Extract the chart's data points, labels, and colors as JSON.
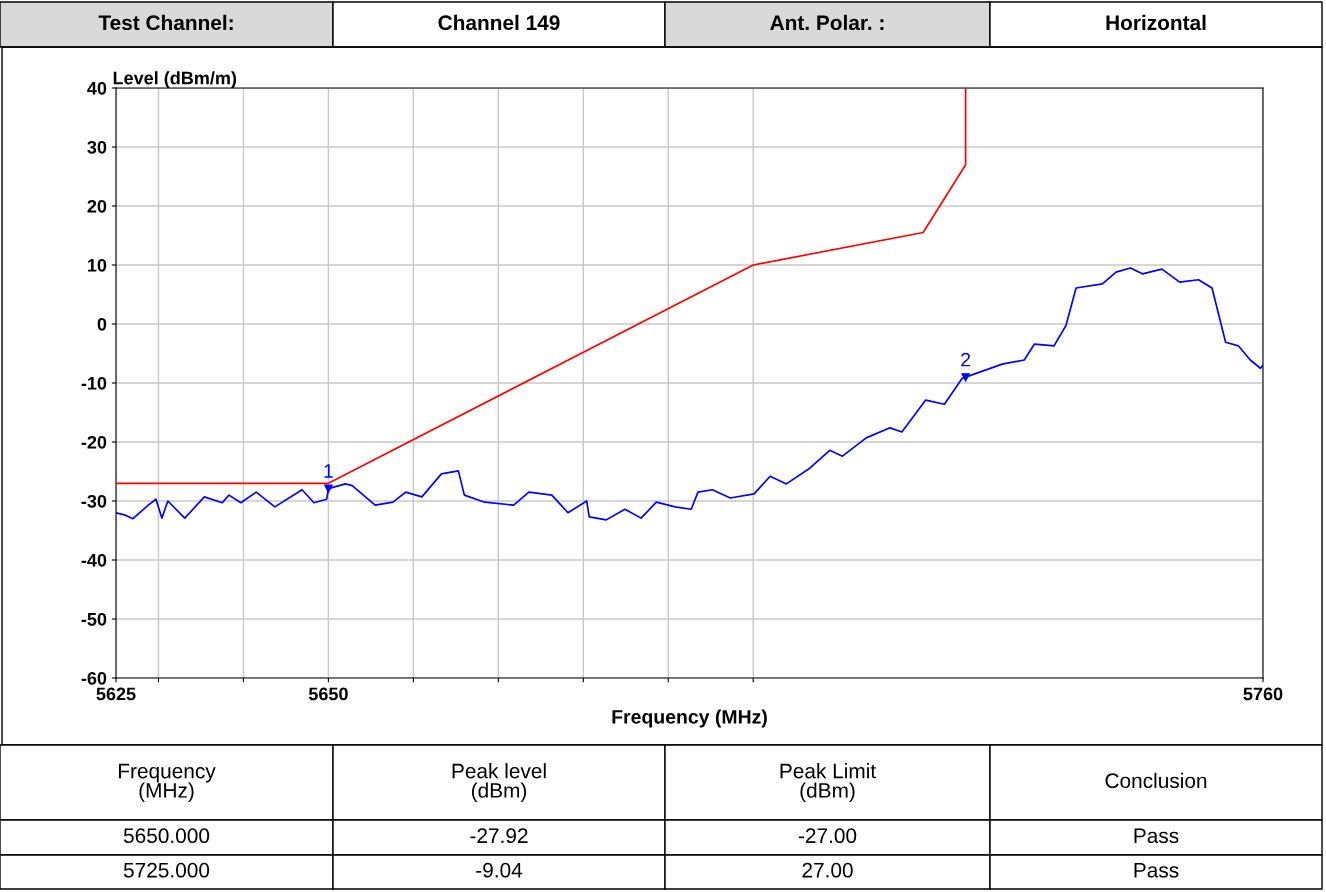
{
  "chart_data": {
    "type": "line",
    "xlabel": "Frequency (MHz)",
    "ylabel": "Level (dBm/m)",
    "xlim": [
      5625,
      5760
    ],
    "ylim": [
      -60,
      40
    ],
    "xticks": [
      5625,
      {
        "value": 5630,
        "label": null
      },
      {
        "value": 5640,
        "label": null
      },
      5650,
      {
        "value": 5660,
        "label": null
      },
      {
        "value": 5670,
        "label": null
      },
      {
        "value": 5680,
        "label": null
      },
      {
        "value": 5690,
        "label": null
      },
      {
        "value": 5700,
        "label": null
      },
      5760
    ],
    "yticks": [
      -60,
      -50,
      -40,
      -30,
      -20,
      -10,
      0,
      10,
      20,
      30,
      40
    ],
    "grid": true,
    "legend": false,
    "series": [
      {
        "color": "#0000ff",
        "x": [
          5625.0,
          5626.1,
          5627.0,
          5628.8,
          5629.7,
          5630.4,
          5631.1,
          5633.1,
          5635.4,
          5637.5,
          5638.3,
          5639.7,
          5641.5,
          5643.7,
          5646.9,
          5648.3,
          5649.8,
          5650.0,
          5652.0,
          5652.8,
          5655.5,
          5657.6,
          5659.1,
          5661.0,
          5663.3,
          5665.3,
          5666.0,
          5668.4,
          5671.8,
          5673.6,
          5676.3,
          5678.2,
          5680.4,
          5680.7,
          5682.7,
          5684.9,
          5686.8,
          5688.6,
          5690.8,
          5692.7,
          5693.5,
          5695.2,
          5697.3,
          5700.1,
          5702.0,
          5703.9,
          5706.7,
          5709.0,
          5710.5,
          5713.3,
          5716.1,
          5717.5,
          5720.3,
          5722.5,
          5724.6,
          5725.0,
          5729.3,
          5731.9,
          5733.1,
          5735.4,
          5736.8,
          5738.0,
          5741.1,
          5742.7,
          5744.4,
          5745.8,
          5748.1,
          5750.2,
          5752.4,
          5754.0,
          5755.6,
          5757.1,
          5758.5,
          5759.7,
          5760.0
        ],
        "values": [
          -32.0,
          -32.4,
          -33.0,
          -30.7,
          -29.7,
          -32.9,
          -30.0,
          -32.9,
          -29.3,
          -30.3,
          -29.0,
          -30.3,
          -28.5,
          -31.0,
          -28.1,
          -30.3,
          -29.7,
          -27.9,
          -27.1,
          -27.4,
          -30.7,
          -30.2,
          -28.5,
          -29.3,
          -25.4,
          -24.9,
          -29.0,
          -30.2,
          -30.7,
          -28.5,
          -29.0,
          -32.0,
          -30.0,
          -32.7,
          -33.2,
          -31.4,
          -32.9,
          -30.2,
          -31.0,
          -31.4,
          -28.5,
          -28.1,
          -29.5,
          -28.8,
          -25.8,
          -27.1,
          -24.4,
          -21.4,
          -22.4,
          -19.3,
          -17.6,
          -18.3,
          -12.9,
          -13.6,
          -9.2,
          -9.0,
          -6.8,
          -6.1,
          -3.4,
          -3.7,
          -0.3,
          6.1,
          6.8,
          8.8,
          9.5,
          8.5,
          9.3,
          7.1,
          7.5,
          6.1,
          -3.1,
          -3.7,
          -6.1,
          -7.5,
          -7.0
        ]
      },
      {
        "color": "#ff0000",
        "x": [
          5625,
          5650,
          5700,
          5720,
          5725,
          5725
        ],
        "values": [
          -27,
          -27,
          10,
          15.5,
          27,
          40
        ]
      }
    ],
    "annotations": [
      "Test Channel:",
      "Channel 149",
      "Ant. Polar. :",
      "Horizontal",
      "Frequency\n(MHz)",
      "Peak level\n(dBm)",
      "Peak Limit\n(dBm)",
      "Conclusion",
      "5650.000",
      "-27.92",
      "-27.00",
      "Pass",
      "5725.000",
      "-9.04",
      "27.00",
      "Pass",
      {
        "text": "1",
        "x": 5650,
        "y": -27.92
      },
      {
        "text": "2",
        "x": 5725,
        "y": -9.04
      }
    ]
  }
}
